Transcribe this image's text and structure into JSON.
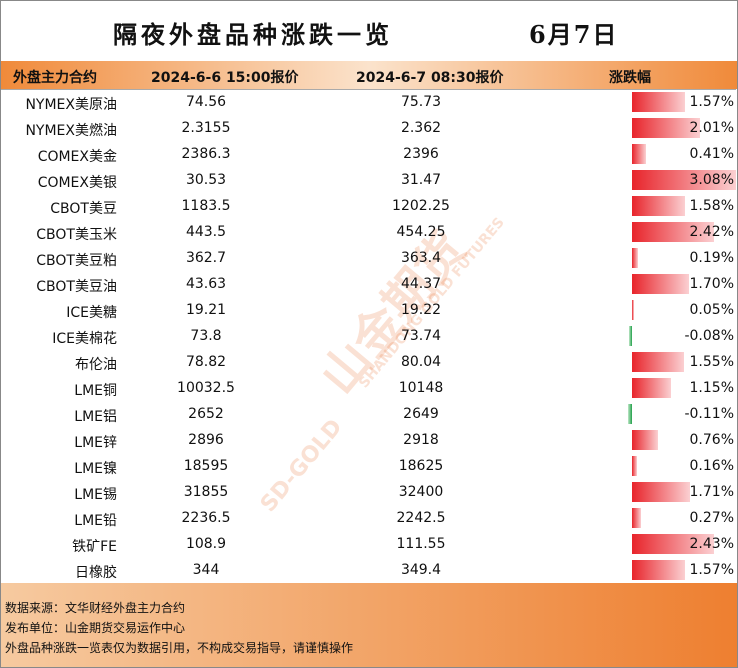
{
  "header": {
    "title": "隔夜外盘品种涨跌一览",
    "date": "6月7日"
  },
  "table": {
    "columns": [
      "外盘主力合约",
      "2024-6-6 15:00报价",
      "2024-6-7 08:30报价",
      "涨跌幅"
    ],
    "rows": [
      [
        "NYMEX美原油",
        "74.56",
        "75.73"
      ],
      [
        "NYMEX美燃油",
        "2.3155",
        "2.362"
      ],
      [
        "COMEX美金",
        "2386.3",
        "2396"
      ],
      [
        "COMEX美银",
        "30.53",
        "31.47"
      ],
      [
        "CBOT美豆",
        "1183.5",
        "1202.25"
      ],
      [
        "CBOT美玉米",
        "443.5",
        "454.25"
      ],
      [
        "CBOT美豆粕",
        "362.7",
        "363.4"
      ],
      [
        "CBOT美豆油",
        "43.63",
        "44.37"
      ],
      [
        "ICE美糖",
        "19.21",
        "19.22"
      ],
      [
        "ICE美棉花",
        "73.8",
        "73.74"
      ],
      [
        "布伦油",
        "78.82",
        "80.04"
      ],
      [
        "LME铜",
        "10032.5",
        "10148"
      ],
      [
        "LME铝",
        "2652",
        "2649"
      ],
      [
        "LME锌",
        "2896",
        "2918"
      ],
      [
        "LME镍",
        "18595",
        "18625"
      ],
      [
        "LME锡",
        "31855",
        "32400"
      ],
      [
        "LME铅",
        "2236.5",
        "2242.5"
      ],
      [
        "铁矿FE",
        "108.9",
        "111.55"
      ],
      [
        "日橡胶",
        "344",
        "349.4"
      ]
    ],
    "changes": [
      {
        "value": 1.57,
        "label": "1.57%"
      },
      {
        "value": 2.01,
        "label": "2.01%"
      },
      {
        "value": 0.41,
        "label": "0.41%"
      },
      {
        "value": 3.08,
        "label": "3.08%"
      },
      {
        "value": 1.58,
        "label": "1.58%"
      },
      {
        "value": 2.42,
        "label": "2.42%"
      },
      {
        "value": 0.19,
        "label": "0.19%"
      },
      {
        "value": 1.7,
        "label": "1.70%"
      },
      {
        "value": 0.05,
        "label": "0.05%"
      },
      {
        "value": -0.08,
        "label": "-0.08%"
      },
      {
        "value": 1.55,
        "label": "1.55%"
      },
      {
        "value": 1.15,
        "label": "1.15%"
      },
      {
        "value": -0.11,
        "label": "-0.11%"
      },
      {
        "value": 0.76,
        "label": "0.76%"
      },
      {
        "value": 0.16,
        "label": "0.16%"
      },
      {
        "value": 1.71,
        "label": "1.71%"
      },
      {
        "value": 0.27,
        "label": "0.27%"
      },
      {
        "value": 2.43,
        "label": "2.43%"
      },
      {
        "value": 1.57,
        "label": "1.57%"
      }
    ]
  },
  "watermark": [
    "山金期货",
    "SHANDONG GOLD FUTURES",
    "SD-GOLD"
  ],
  "footer": [
    "数据来源：文华财经外盘主力合约",
    "发布单位：山金期货交易运作中心",
    "外盘品种涨跌一览表仅为数据引用，不构成交易指导，请谨慎操作"
  ]
}
